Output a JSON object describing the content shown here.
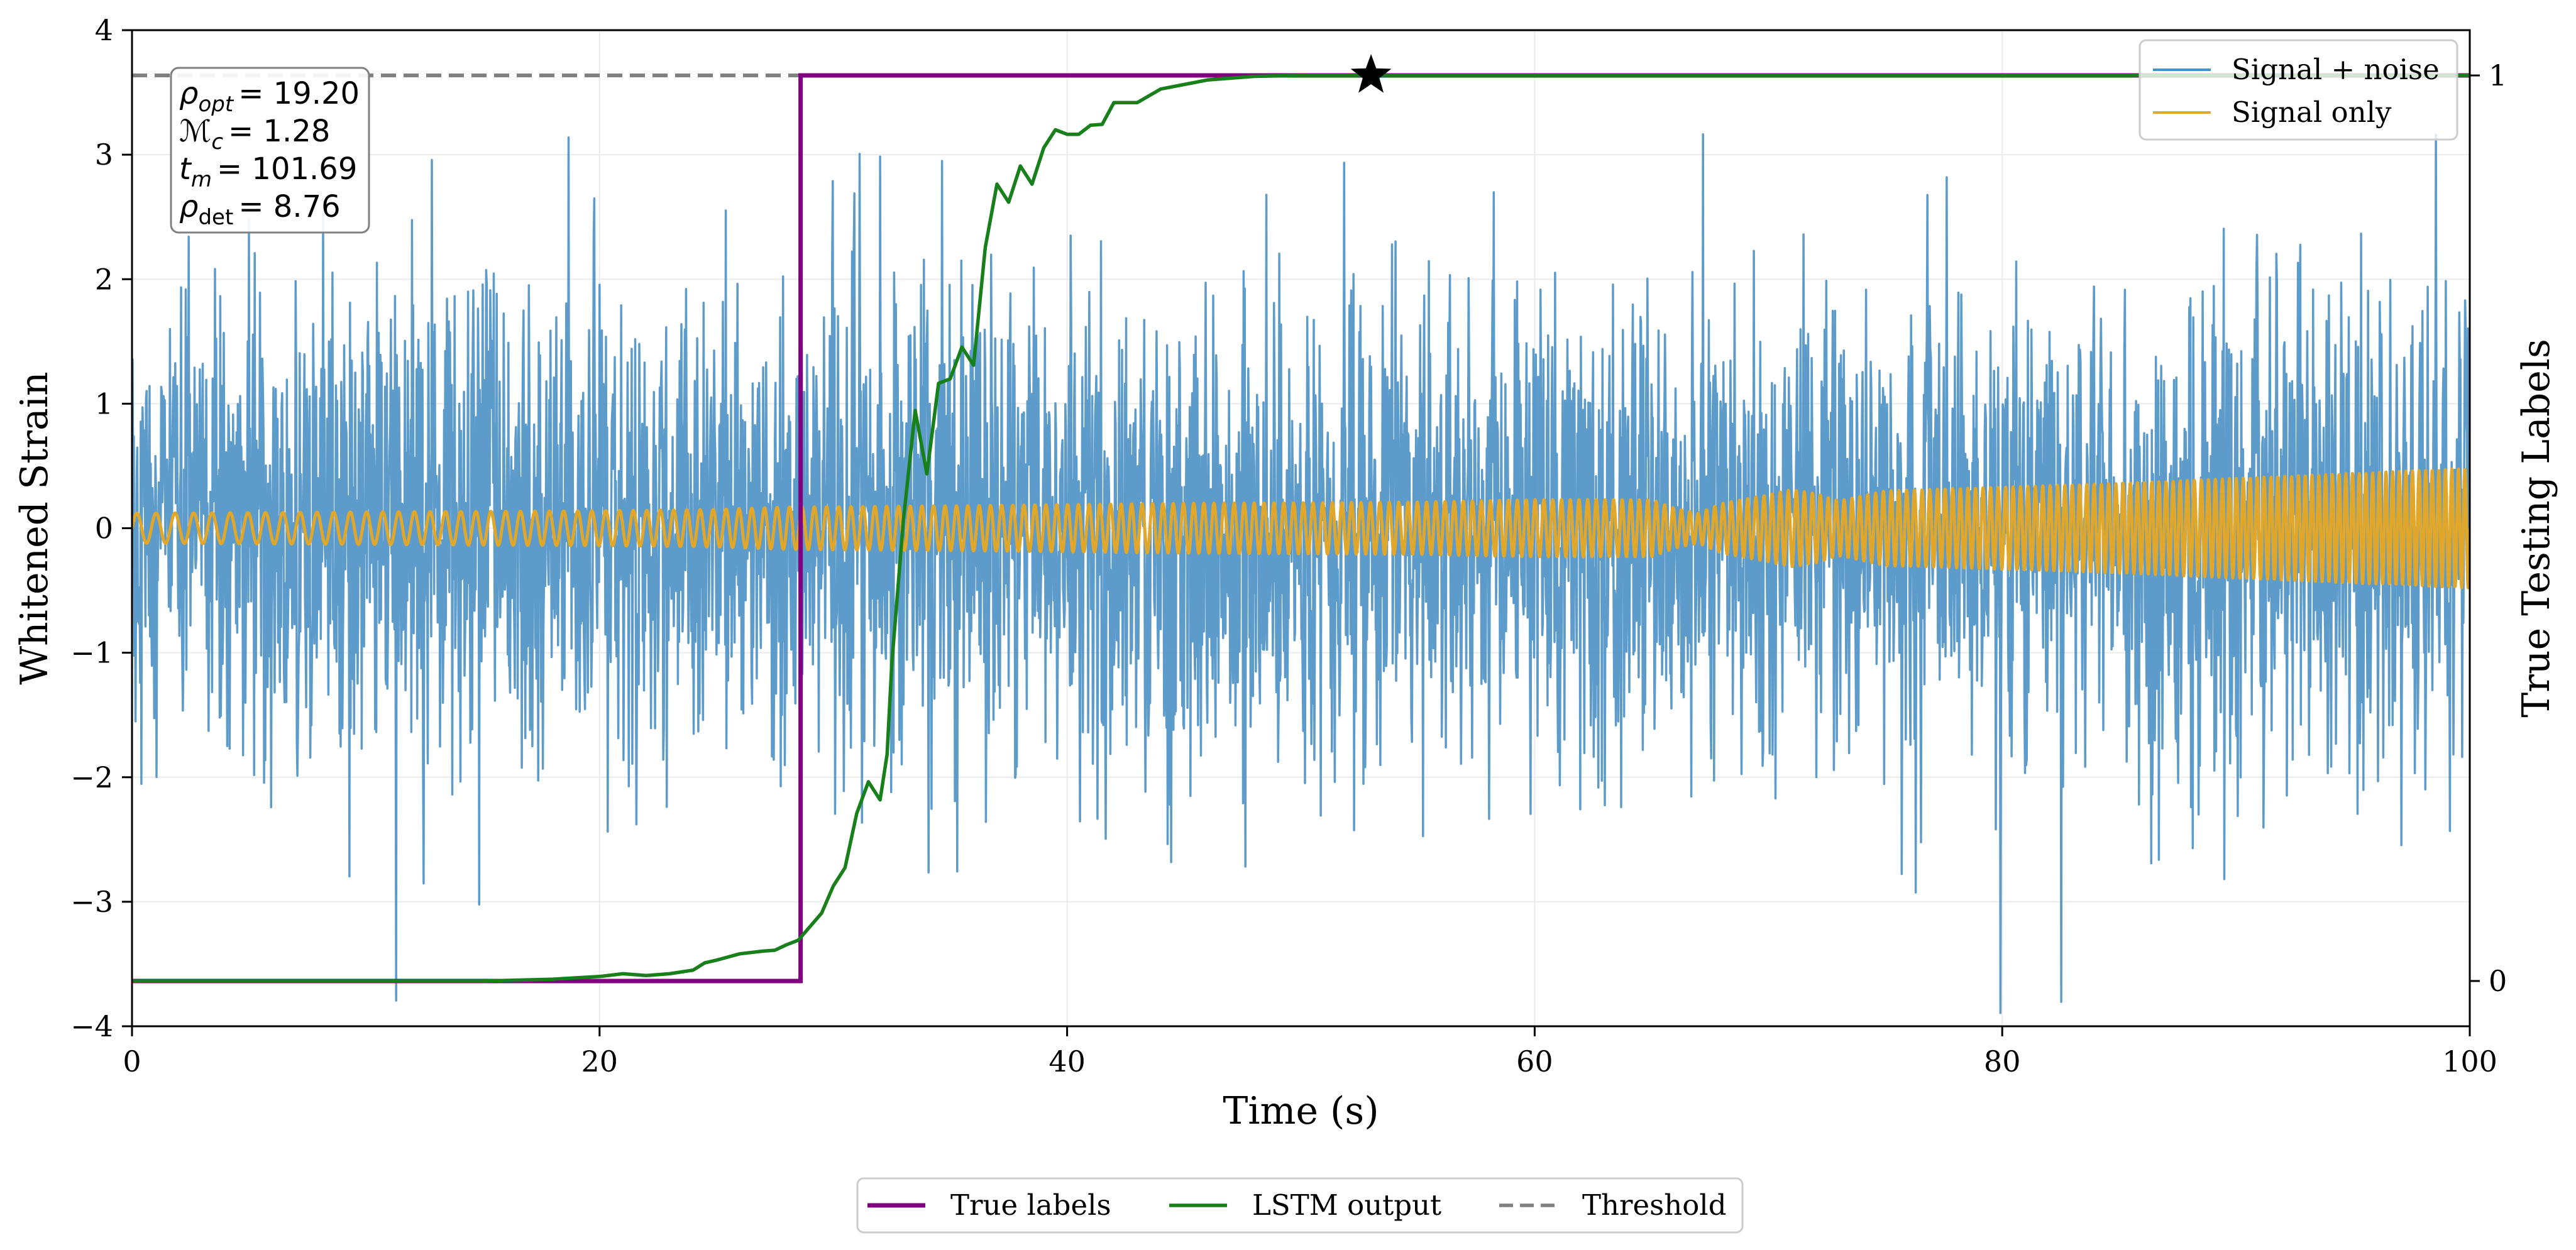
{
  "chart_data": {
    "type": "line",
    "xlabel": "Time (s)",
    "ylabel_left": "Whitened Strain",
    "ylabel_right": "True Testing Labels",
    "xlim": [
      0,
      100
    ],
    "ylim_left": [
      -4,
      4
    ],
    "ylim_right": [
      -0.05,
      1.05
    ],
    "x_ticks": [
      0,
      20,
      40,
      60,
      80,
      100
    ],
    "x_tick_labels": [
      "0",
      "20",
      "40",
      "60",
      "80",
      "100"
    ],
    "y_ticks_left": [
      -4,
      -3,
      -2,
      -1,
      0,
      1,
      2,
      3,
      4
    ],
    "y_tick_labels_left": [
      "−4",
      "−3",
      "−2",
      "−1",
      "0",
      "1",
      "2",
      "3",
      "4"
    ],
    "y_ticks_right": [
      0,
      1
    ],
    "y_tick_labels_right": [
      "0",
      "1"
    ],
    "grid": true,
    "colors": {
      "signal_noise": "#4a90c4",
      "signal_only": "#e0a72a",
      "true_labels": "#800080",
      "lstm": "#17801a",
      "threshold": "#808080",
      "star": "#000000"
    },
    "series": [
      {
        "name": "Signal + noise",
        "axis": "left",
        "style": "noise",
        "x_range": [
          0,
          100
        ],
        "sigma": 0.95,
        "typical_extent": 2.3,
        "max_extent": 4.0
      },
      {
        "name": "Signal only",
        "axis": "left",
        "style": "envelope",
        "x": [
          0,
          10,
          20,
          25,
          28,
          35,
          45,
          55,
          60,
          65,
          66,
          67,
          68,
          70,
          71,
          72,
          73,
          75,
          80,
          85,
          90,
          95,
          100
        ],
        "amplitude": [
          0.12,
          0.13,
          0.14,
          0.15,
          0.17,
          0.18,
          0.2,
          0.21,
          0.23,
          0.23,
          0.16,
          0.12,
          0.2,
          0.27,
          0.31,
          0.28,
          0.22,
          0.3,
          0.33,
          0.36,
          0.4,
          0.44,
          0.48
        ]
      },
      {
        "name": "True labels",
        "axis": "right",
        "style": "step",
        "x": [
          0,
          28.6,
          28.6,
          100
        ],
        "y": [
          0,
          0,
          1,
          1
        ]
      },
      {
        "name": "LSTM output",
        "axis": "right",
        "style": "line",
        "x": [
          0,
          10,
          15,
          18,
          20,
          21,
          22,
          23,
          24,
          24.5,
          25,
          26,
          27,
          27.5,
          28,
          28.5,
          29,
          29.5,
          30,
          30.5,
          31,
          31.5,
          32,
          32.3,
          32.5,
          33,
          33.5,
          34,
          34.5,
          35,
          35.5,
          36,
          36.5,
          37,
          37.5,
          38,
          38.5,
          39,
          39.5,
          40,
          40.5,
          41,
          41.5,
          42,
          43,
          44,
          45,
          46,
          48,
          50,
          53,
          60,
          80,
          100
        ],
        "y": [
          0,
          0,
          0,
          0.002,
          0.005,
          0.008,
          0.006,
          0.008,
          0.012,
          0.02,
          0.023,
          0.03,
          0.033,
          0.034,
          0.04,
          0.045,
          0.06,
          0.075,
          0.105,
          0.125,
          0.185,
          0.22,
          0.2,
          0.25,
          0.35,
          0.51,
          0.63,
          0.56,
          0.66,
          0.665,
          0.7,
          0.68,
          0.81,
          0.88,
          0.86,
          0.9,
          0.88,
          0.92,
          0.94,
          0.935,
          0.935,
          0.945,
          0.946,
          0.97,
          0.97,
          0.985,
          0.99,
          0.995,
          0.999,
          1.0,
          1.0,
          1.0,
          1.0,
          1.0
        ]
      },
      {
        "name": "Threshold",
        "axis": "right",
        "style": "hline",
        "y": 1.0
      }
    ],
    "marker": {
      "name": "detection star",
      "x": 53,
      "y": 1.0,
      "axis": "right"
    },
    "legend_upper": [
      "Signal + noise",
      "Signal only"
    ],
    "legend_upper_placement": "top-right",
    "legend_lower": [
      "True labels",
      "LSTM output",
      "Threshold"
    ],
    "legend_lower_placement": "bottom-center",
    "annotation_box": {
      "placement": "top-left",
      "lines": [
        {
          "symbol": "ρ",
          "sub": "opt",
          "italic_sub": true,
          "value": "= 19.20"
        },
        {
          "symbol": "ℳ",
          "sub": "c",
          "italic_sub": true,
          "value": "= 1.28"
        },
        {
          "symbol": "t",
          "sub": "m",
          "italic_sub": true,
          "value": "= 101.69"
        },
        {
          "symbol": "ρ",
          "sub": "det",
          "italic_sub": false,
          "value": "= 8.76"
        }
      ]
    }
  }
}
